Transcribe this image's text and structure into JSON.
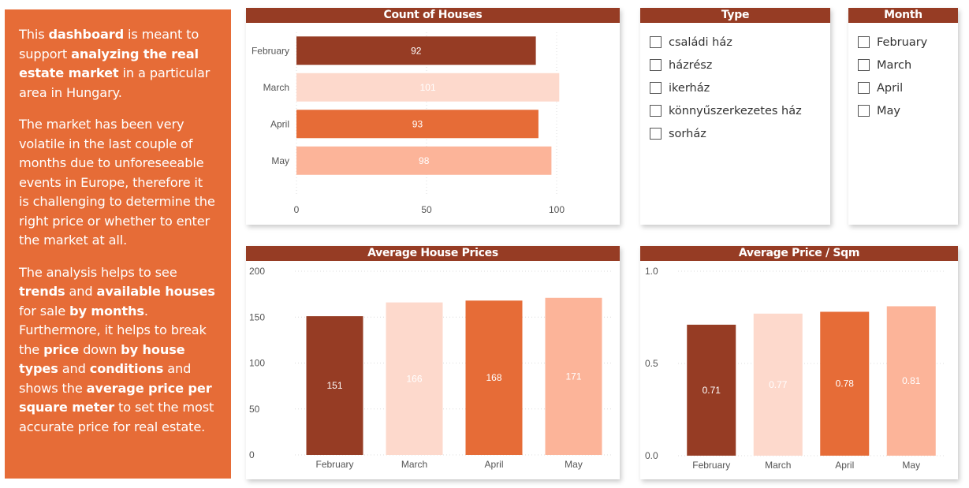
{
  "intro": {
    "p1": [
      {
        "t": "This ",
        "b": false
      },
      {
        "t": "dashboard",
        "b": true
      },
      {
        "t": " is meant to support ",
        "b": false
      },
      {
        "t": "analyzing the real estate market",
        "b": true
      },
      {
        "t": " in a particular area in Hungary.",
        "b": false
      }
    ],
    "p2": [
      {
        "t": "The market has been very volatile in the last couple of months due to unforeseeable events in Europe, therefore it is challenging to determine the right price or whether to enter the market at all.",
        "b": false
      }
    ],
    "p3": [
      {
        "t": "The analysis helps to see ",
        "b": false
      },
      {
        "t": "trends",
        "b": true
      },
      {
        "t": " and ",
        "b": false
      },
      {
        "t": "available houses",
        "b": true
      },
      {
        "t": " for sale ",
        "b": false
      },
      {
        "t": "by months",
        "b": true
      },
      {
        "t": ". Furthermore, it helps to break the ",
        "b": false
      },
      {
        "t": "price",
        "b": true
      },
      {
        "t": " down ",
        "b": false
      },
      {
        "t": "by house types",
        "b": true
      },
      {
        "t": " and ",
        "b": false
      },
      {
        "t": "conditions",
        "b": true
      },
      {
        "t": " and shows the ",
        "b": false
      },
      {
        "t": "average price per square meter",
        "b": true
      },
      {
        "t": " to set the most accurate price for real estate.",
        "b": false
      }
    ]
  },
  "colors": {
    "february": "#963c24",
    "march": "#fdd9cc",
    "april": "#e66c37",
    "may": "#fcb499",
    "header": "#963c24",
    "intro_bg": "#e66c37"
  },
  "slicers": {
    "type": {
      "title": "Type",
      "items": [
        "családi ház",
        "házrész",
        "ikerház",
        "könnyűszerkezetes ház",
        "sorház"
      ]
    },
    "month": {
      "title": "Month",
      "items": [
        "February",
        "March",
        "April",
        "May"
      ]
    }
  },
  "chart_data": [
    {
      "id": "count",
      "type": "bar",
      "orientation": "horizontal",
      "title": "Count of Houses",
      "categories": [
        "February",
        "March",
        "April",
        "May"
      ],
      "values": [
        92,
        101,
        93,
        98
      ],
      "xlim": [
        0,
        100
      ],
      "xticks": [
        "0",
        "50",
        "100"
      ],
      "grid": true,
      "data_labels": true
    },
    {
      "id": "avgprice",
      "type": "bar",
      "title": "Average House Prices",
      "categories": [
        "February",
        "March",
        "April",
        "May"
      ],
      "values": [
        151,
        166,
        168,
        171
      ],
      "ylim": [
        0,
        200
      ],
      "yticks": [
        "0",
        "50",
        "100",
        "150",
        "200"
      ],
      "grid": true,
      "data_labels": true
    },
    {
      "id": "sqm",
      "type": "bar",
      "title": "Average Price / Sqm",
      "categories": [
        "February",
        "March",
        "April",
        "May"
      ],
      "values": [
        0.71,
        0.77,
        0.78,
        0.81
      ],
      "value_labels": [
        "0.71",
        "0.77",
        "0.78",
        "0.81"
      ],
      "ylim": [
        0,
        1
      ],
      "yticks": [
        "0.0",
        "0.5",
        "1.0"
      ],
      "grid": true,
      "data_labels": true
    }
  ]
}
